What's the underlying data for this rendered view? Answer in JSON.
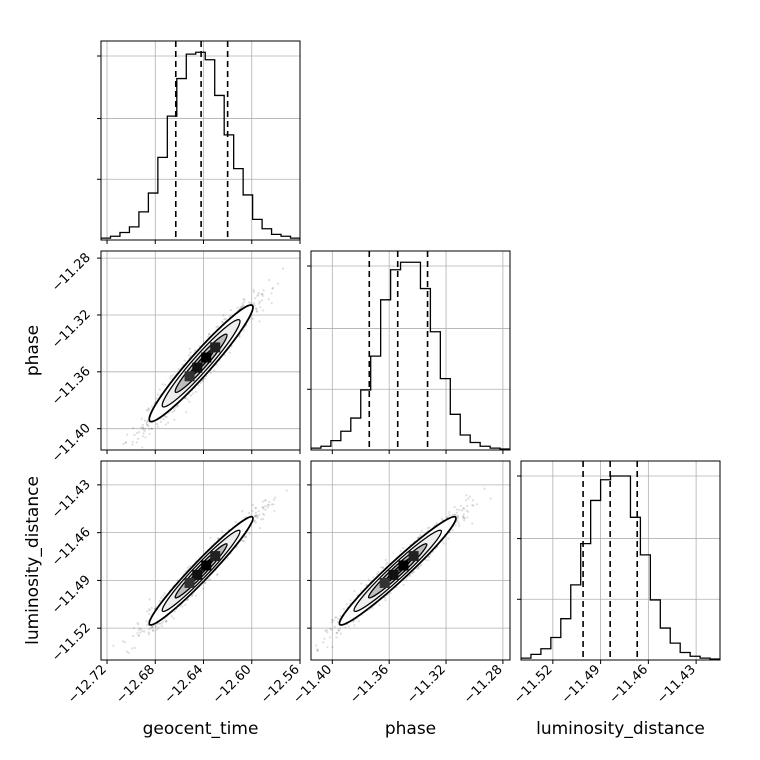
{
  "chart_data": {
    "type": "corner",
    "parameters": [
      "geocent_time",
      "phase",
      "luminosity_distance"
    ],
    "axis_labels": {
      "geocent_time": "geocent_time",
      "phase": "phase",
      "luminosity_distance": "luminosity_distance"
    },
    "ranges": {
      "geocent_time": [
        -12.725,
        -12.56
      ],
      "phase": [
        -11.415,
        -11.275
      ],
      "luminosity_distance": [
        -11.54,
        -11.415
      ]
    },
    "ticks": {
      "geocent_time": {
        "values": [
          -12.72,
          -12.68,
          -12.64,
          -12.6,
          -12.56
        ],
        "labels": [
          "−12.72",
          "−12.68",
          "−12.64",
          "−12.60",
          "−12.56"
        ]
      },
      "phase": {
        "values": [
          -11.4,
          -11.36,
          -11.32,
          -11.28
        ],
        "labels": [
          "−11.40",
          "−11.36",
          "−11.32",
          "−11.28"
        ]
      },
      "luminosity_distance": {
        "values": [
          -11.52,
          -11.49,
          -11.46,
          -11.43
        ],
        "labels": [
          "−11.52",
          "−11.49",
          "−11.46",
          "−11.43"
        ]
      }
    },
    "quantiles": {
      "geocent_time": [
        -12.663,
        -12.642,
        -12.62
      ],
      "phase": [
        -11.374,
        -11.354,
        -11.333
      ],
      "luminosity_distance": [
        -11.501,
        -11.484,
        -11.467
      ]
    },
    "histograms": {
      "geocent_time": [
        0.01,
        0.02,
        0.04,
        0.07,
        0.15,
        0.25,
        0.44,
        0.66,
        0.86,
        0.99,
        1.0,
        0.96,
        0.77,
        0.56,
        0.38,
        0.24,
        0.11,
        0.06,
        0.03,
        0.02,
        0.01
      ],
      "phase": [
        0.01,
        0.02,
        0.05,
        0.1,
        0.17,
        0.32,
        0.5,
        0.8,
        0.96,
        1.0,
        1.0,
        0.86,
        0.63,
        0.38,
        0.19,
        0.08,
        0.04,
        0.02,
        0.01,
        0.005
      ],
      "luminosity_distance": [
        0.01,
        0.03,
        0.06,
        0.12,
        0.22,
        0.4,
        0.62,
        0.85,
        0.96,
        0.98,
        0.98,
        0.76,
        0.56,
        0.32,
        0.17,
        0.09,
        0.04,
        0.02,
        0.01,
        0.005
      ]
    },
    "correlations": {
      "geocent_time|phase": 0.96,
      "geocent_time|luminosity_distance": 0.97,
      "phase|luminosity_distance": 0.97
    },
    "grid": true,
    "line_color": "#000000",
    "contour_fill": [
      "#ffffff",
      "#eeeeee",
      "#bdbdbd",
      "#6e6e6e"
    ]
  }
}
